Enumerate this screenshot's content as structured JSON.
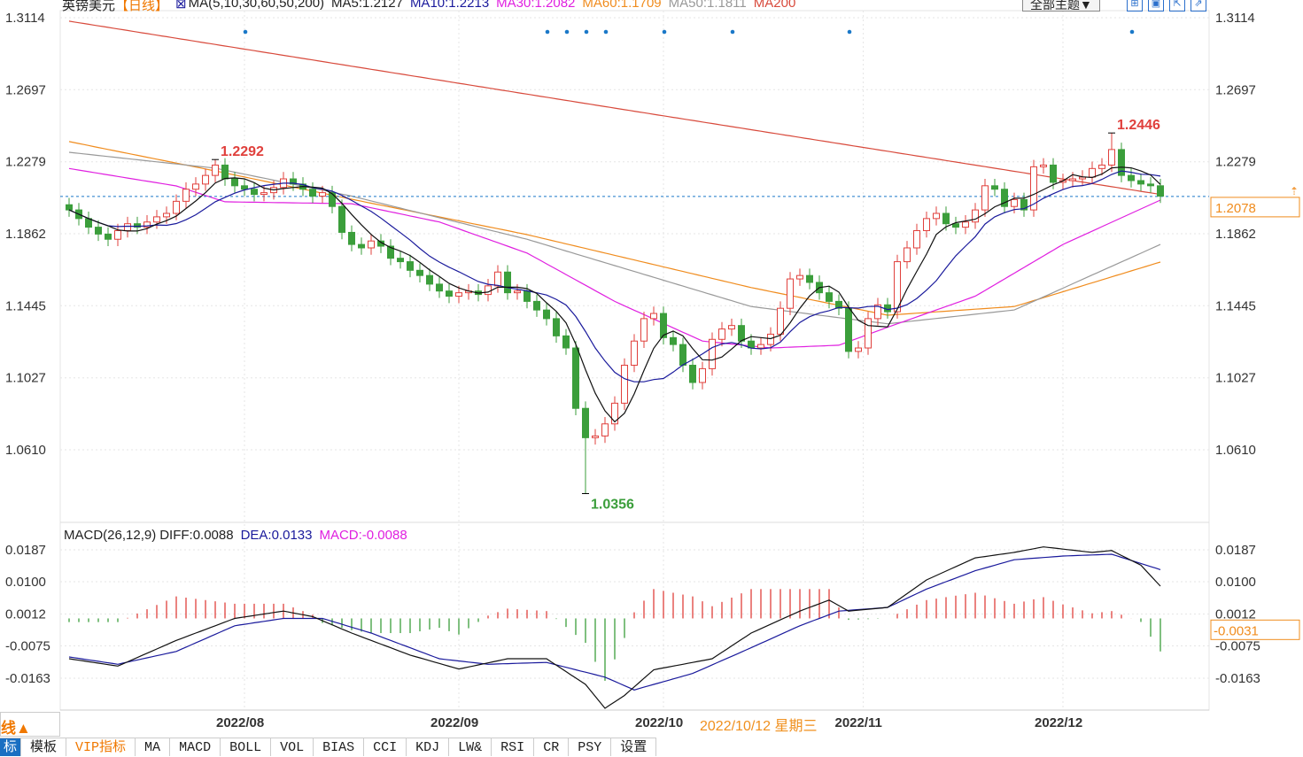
{
  "header": {
    "symbol": "英镑美元",
    "period": "【日线】",
    "ma_params": "MA(5,10,30,60,50,200)",
    "ma5": "MA5:1.2127",
    "ma10": "MA10:1.2213",
    "ma30": "MA30:1.2082",
    "ma60": "MA60:1.1709",
    "ma50": "MA50:1.1811",
    "ma200": "MA200",
    "theme_button": "全部主题▼"
  },
  "macd_header": {
    "params": "MACD(26,12,9)",
    "diff": "DIFF:0.0088",
    "dea": "DEA:0.0133",
    "macd": "MACD:-0.0088"
  },
  "tooltip": "2022/10/12 星期三",
  "corner_label": "线▲",
  "tabs": [
    "标",
    "模板",
    "VIP指标",
    "MA",
    "MACD",
    "BOLL",
    "VOL",
    "BIAS",
    "CCI",
    "KDJ",
    "LW&",
    "RSI",
    "CR",
    "PSY",
    "设置"
  ],
  "colors": {
    "up": "#e0403c",
    "down": "#3b9e3b",
    "ma5": "#111111",
    "ma10": "#1a1a9c",
    "ma30": "#e020e0",
    "ma60": "#f08c1e",
    "ma50": "#999999",
    "ma200": "#d84a3c",
    "current": "#f08c1e"
  },
  "chart_data": {
    "type": "candlestick",
    "title": "英镑美元 日线",
    "price_axis": {
      "ticks": [
        "1.3114",
        "1.2697",
        "1.2279",
        "1.1862",
        "1.1445",
        "1.1027",
        "1.0610"
      ],
      "range": [
        1.061,
        1.3114
      ]
    },
    "date_labels": [
      {
        "i": 18,
        "label": "2022/08"
      },
      {
        "i": 40,
        "label": "2022/09"
      },
      {
        "i": 61,
        "label": "2022/10"
      },
      {
        "i": 81.5,
        "label": "2022/11"
      },
      {
        "i": 102,
        "label": "2022/12"
      }
    ],
    "first_open": 1.203,
    "closes": [
      1.2,
      1.195,
      1.19,
      1.186,
      1.183,
      1.188,
      1.192,
      1.19,
      1.193,
      1.196,
      1.198,
      1.205,
      1.212,
      1.215,
      1.22,
      1.226,
      1.218,
      1.214,
      1.212,
      1.209,
      1.21,
      1.213,
      1.218,
      1.215,
      1.212,
      1.208,
      1.21,
      1.202,
      1.187,
      1.18,
      1.178,
      1.182,
      1.179,
      1.172,
      1.17,
      1.165,
      1.162,
      1.157,
      1.153,
      1.15,
      1.152,
      1.153,
      1.151,
      1.156,
      1.164,
      1.152,
      1.153,
      1.147,
      1.142,
      1.137,
      1.127,
      1.12,
      1.085,
      1.068,
      1.069,
      1.076,
      1.088,
      1.11,
      1.124,
      1.137,
      1.14,
      1.126,
      1.122,
      1.11,
      1.1,
      1.108,
      1.125,
      1.131,
      1.133,
      1.124,
      1.12,
      1.122,
      1.128,
      1.143,
      1.16,
      1.162,
      1.158,
      1.152,
      1.147,
      1.143,
      1.118,
      1.12,
      1.137,
      1.145,
      1.141,
      1.17,
      1.178,
      1.188,
      1.195,
      1.198,
      1.192,
      1.19,
      1.193,
      1.2,
      1.214,
      1.212,
      1.202,
      1.206,
      1.2,
      1.225,
      1.226,
      1.216,
      1.217,
      1.218,
      1.219,
      1.224,
      1.226,
      1.235,
      1.22,
      1.217,
      1.215,
      1.214,
      1.208
    ],
    "wick": 0.004,
    "extremes": [
      {
        "i": 15,
        "high": 1.2292,
        "label": "1.2292"
      },
      {
        "i": 107,
        "high": 1.2446,
        "label": "1.2446"
      },
      {
        "i": 53,
        "low": 1.0356,
        "label": "1.0356"
      }
    ],
    "current_price": {
      "value": 1.2078,
      "label": "1.2078"
    },
    "ma_series": {
      "ma30": [
        [
          0,
          1.224
        ],
        [
          11,
          1.2139
        ],
        [
          16,
          1.2047
        ],
        [
          29,
          1.2036
        ],
        [
          38,
          1.193
        ],
        [
          47,
          1.175
        ],
        [
          56,
          1.147
        ],
        [
          65,
          1.124
        ],
        [
          72,
          1.12
        ],
        [
          79,
          1.1216
        ],
        [
          84,
          1.132
        ],
        [
          93,
          1.15
        ],
        [
          102,
          1.18
        ],
        [
          112,
          1.2057
        ]
      ],
      "ma60": [
        [
          0,
          1.2396
        ],
        [
          15,
          1.2226
        ],
        [
          29,
          1.2062
        ],
        [
          47,
          1.1857
        ],
        [
          70,
          1.155
        ],
        [
          84,
          1.139
        ],
        [
          97,
          1.144
        ],
        [
          112,
          1.1698
        ]
      ],
      "ma50": [
        [
          0,
          1.2334
        ],
        [
          15,
          1.2242
        ],
        [
          29,
          1.208
        ],
        [
          47,
          1.183
        ],
        [
          70,
          1.144
        ],
        [
          84,
          1.134
        ],
        [
          97,
          1.142
        ],
        [
          112,
          1.18
        ]
      ],
      "ma200": [
        [
          0,
          1.3094
        ],
        [
          56,
          1.259
        ],
        [
          112,
          1.209
        ]
      ]
    },
    "macd": {
      "ticks": [
        "0.0187",
        "0.0100",
        "0.0012",
        "-0.0075",
        "-0.0163"
      ],
      "range": [
        -0.0163,
        0.0187
      ],
      "diff": [
        [
          0,
          -0.011
        ],
        [
          5,
          -0.013
        ],
        [
          11,
          -0.006
        ],
        [
          17,
          0
        ],
        [
          22,
          0.002
        ],
        [
          25,
          0.0005
        ],
        [
          29,
          -0.004
        ],
        [
          35,
          -0.01
        ],
        [
          40,
          -0.0138
        ],
        [
          45,
          -0.011
        ],
        [
          49,
          -0.011
        ],
        [
          53,
          -0.018
        ],
        [
          55,
          -0.0245
        ],
        [
          57,
          -0.021
        ],
        [
          60,
          -0.014
        ],
        [
          66,
          -0.011
        ],
        [
          70,
          -0.004
        ],
        [
          75,
          0.002
        ],
        [
          78,
          0.005
        ],
        [
          80,
          0.002
        ],
        [
          84,
          0.003
        ],
        [
          88,
          0.0105
        ],
        [
          93,
          0.0165
        ],
        [
          97,
          0.018
        ],
        [
          100,
          0.0195
        ],
        [
          105,
          0.018
        ],
        [
          107,
          0.0185
        ],
        [
          110,
          0.0145
        ],
        [
          112,
          0.0088
        ]
      ],
      "dea": [
        [
          0,
          -0.0105
        ],
        [
          5,
          -0.0125
        ],
        [
          11,
          -0.009
        ],
        [
          17,
          -0.002
        ],
        [
          22,
          0
        ],
        [
          26,
          0
        ],
        [
          31,
          -0.004
        ],
        [
          38,
          -0.011
        ],
        [
          43,
          -0.0125
        ],
        [
          49,
          -0.012
        ],
        [
          55,
          -0.016
        ],
        [
          58,
          -0.0195
        ],
        [
          64,
          -0.015
        ],
        [
          70,
          -0.008
        ],
        [
          75,
          -0.002
        ],
        [
          79,
          0.002
        ],
        [
          84,
          0.003
        ],
        [
          88,
          0.008
        ],
        [
          93,
          0.013
        ],
        [
          97,
          0.016
        ],
        [
          102,
          0.017
        ],
        [
          107,
          0.0175
        ],
        [
          112,
          0.0133
        ]
      ],
      "current_label": "-0.0031"
    },
    "event_markers": [
      18,
      49,
      51,
      53,
      55,
      61,
      68,
      80,
      109
    ]
  }
}
